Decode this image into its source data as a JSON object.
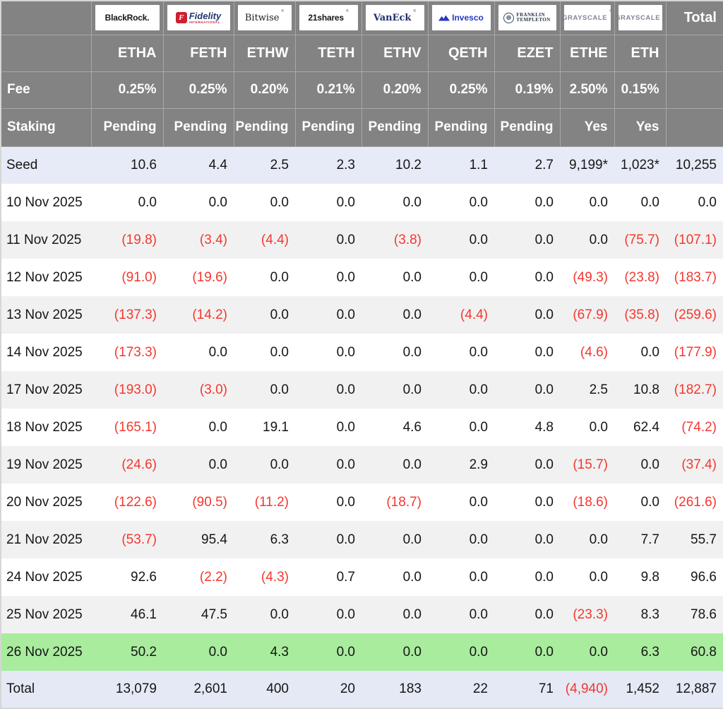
{
  "colors": {
    "header_bg": "#838383",
    "negative_red": "#f4372e",
    "highlight_green": "#a9ec9d",
    "seed_row_bg": "#e7ebf7",
    "total_row_bg": "#e4e9f5",
    "alt_row_bg": "#f1f1f1"
  },
  "header": {
    "fee_label": "Fee",
    "staking_label": "Staking",
    "total_label": "Total"
  },
  "chart_data": {
    "type": "table",
    "providers": [
      {
        "name": "BlackRock",
        "ticker": "ETHA",
        "fee": "0.25%",
        "staking": "Pending",
        "logo": {
          "text": "BlackRock."
        }
      },
      {
        "name": "Fidelity",
        "ticker": "FETH",
        "fee": "0.25%",
        "staking": "Pending",
        "logo": {
          "badge": "F",
          "text": "Fidelity",
          "sub": "INTERNATIONAL"
        }
      },
      {
        "name": "Bitwise",
        "ticker": "ETHW",
        "fee": "0.20%",
        "staking": "Pending",
        "logo": {
          "text": "Bitwise",
          "mark": "®"
        }
      },
      {
        "name": "21shares",
        "ticker": "TETH",
        "fee": "0.21%",
        "staking": "Pending",
        "logo": {
          "text": "21shares",
          "mark": "®"
        }
      },
      {
        "name": "VanEck",
        "ticker": "ETHV",
        "fee": "0.20%",
        "staking": "Pending",
        "logo": {
          "text": "VanEck",
          "mark": "®"
        }
      },
      {
        "name": "Invesco",
        "ticker": "QETH",
        "fee": "0.25%",
        "staking": "Pending",
        "logo": {
          "text": "Invesco"
        }
      },
      {
        "name": "Franklin Templeton",
        "ticker": "EZET",
        "fee": "0.19%",
        "staking": "Pending",
        "logo": {
          "text": "FRANKLIN",
          "sub": "TEMPLETON"
        }
      },
      {
        "name": "Grayscale",
        "ticker": "ETHE",
        "fee": "2.50%",
        "staking": "Yes",
        "logo": {
          "text": "GRAYSCALE",
          "mark": "®"
        }
      },
      {
        "name": "Grayscale",
        "ticker": "ETH",
        "fee": "0.15%",
        "staking": "Yes",
        "logo": {
          "text": "GRAYSCALE",
          "mark": "®"
        }
      }
    ],
    "rows": [
      {
        "label": "Seed",
        "highlight": "seed",
        "values": [
          "10.6",
          "4.4",
          "2.5",
          "2.3",
          "10.2",
          "1.1",
          "2.7",
          "9,199*",
          "1,023*",
          "10,255"
        ]
      },
      {
        "label": "10 Nov 2025",
        "values": [
          "0.0",
          "0.0",
          "0.0",
          "0.0",
          "0.0",
          "0.0",
          "0.0",
          "0.0",
          "0.0",
          "0.0"
        ]
      },
      {
        "label": "11 Nov 2025",
        "values": [
          "(19.8)",
          "(3.4)",
          "(4.4)",
          "0.0",
          "(3.8)",
          "0.0",
          "0.0",
          "0.0",
          "(75.7)",
          "(107.1)"
        ]
      },
      {
        "label": "12 Nov 2025",
        "values": [
          "(91.0)",
          "(19.6)",
          "0.0",
          "0.0",
          "0.0",
          "0.0",
          "0.0",
          "(49.3)",
          "(23.8)",
          "(183.7)"
        ]
      },
      {
        "label": "13 Nov 2025",
        "values": [
          "(137.3)",
          "(14.2)",
          "0.0",
          "0.0",
          "0.0",
          "(4.4)",
          "0.0",
          "(67.9)",
          "(35.8)",
          "(259.6)"
        ]
      },
      {
        "label": "14 Nov 2025",
        "values": [
          "(173.3)",
          "0.0",
          "0.0",
          "0.0",
          "0.0",
          "0.0",
          "0.0",
          "(4.6)",
          "0.0",
          "(177.9)"
        ]
      },
      {
        "label": "17 Nov 2025",
        "values": [
          "(193.0)",
          "(3.0)",
          "0.0",
          "0.0",
          "0.0",
          "0.0",
          "0.0",
          "2.5",
          "10.8",
          "(182.7)"
        ]
      },
      {
        "label": "18 Nov 2025",
        "values": [
          "(165.1)",
          "0.0",
          "19.1",
          "0.0",
          "4.6",
          "0.0",
          "4.8",
          "0.0",
          "62.4",
          "(74.2)"
        ]
      },
      {
        "label": "19 Nov 2025",
        "values": [
          "(24.6)",
          "0.0",
          "0.0",
          "0.0",
          "0.0",
          "2.9",
          "0.0",
          "(15.7)",
          "0.0",
          "(37.4)"
        ]
      },
      {
        "label": "20 Nov 2025",
        "values": [
          "(122.6)",
          "(90.5)",
          "(11.2)",
          "0.0",
          "(18.7)",
          "0.0",
          "0.0",
          "(18.6)",
          "0.0",
          "(261.6)"
        ]
      },
      {
        "label": "21 Nov 2025",
        "values": [
          "(53.7)",
          "95.4",
          "6.3",
          "0.0",
          "0.0",
          "0.0",
          "0.0",
          "0.0",
          "7.7",
          "55.7"
        ]
      },
      {
        "label": "24 Nov 2025",
        "values": [
          "92.6",
          "(2.2)",
          "(4.3)",
          "0.7",
          "0.0",
          "0.0",
          "0.0",
          "0.0",
          "9.8",
          "96.6"
        ]
      },
      {
        "label": "25 Nov 2025",
        "values": [
          "46.1",
          "47.5",
          "0.0",
          "0.0",
          "0.0",
          "0.0",
          "0.0",
          "(23.3)",
          "8.3",
          "78.6"
        ]
      },
      {
        "label": "26 Nov 2025",
        "highlight": "green",
        "values": [
          "50.2",
          "0.0",
          "4.3",
          "0.0",
          "0.0",
          "0.0",
          "0.0",
          "0.0",
          "6.3",
          "60.8"
        ]
      },
      {
        "label": "Total",
        "highlight": "total",
        "values": [
          "13,079",
          "2,601",
          "400",
          "20",
          "183",
          "22",
          "71",
          "(4,940)",
          "1,452",
          "12,887"
        ]
      }
    ]
  }
}
